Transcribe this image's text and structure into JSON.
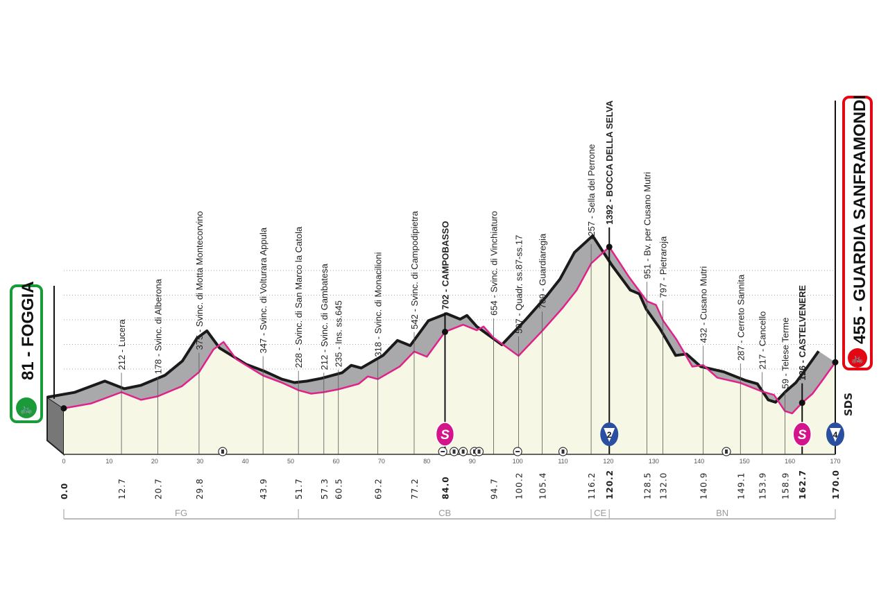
{
  "chart_data": {
    "type": "area",
    "title": "",
    "xlabel": "",
    "ylabel": "",
    "xlim": [
      0,
      170
    ],
    "ylim": [
      0,
      1400
    ],
    "x_ticks": [
      0,
      10,
      20,
      30,
      40,
      50,
      60,
      70,
      80,
      90,
      100,
      110,
      120,
      130,
      140,
      150,
      160,
      170
    ],
    "y_ticks": [
      0,
      200,
      400,
      600,
      800,
      1000,
      1200
    ],
    "grid": true,
    "profile": [
      [
        0,
        81
      ],
      [
        6,
        120
      ],
      [
        12.7,
        212
      ],
      [
        17,
        150
      ],
      [
        20.7,
        178
      ],
      [
        26,
        260
      ],
      [
        29.8,
        375
      ],
      [
        33,
        560
      ],
      [
        35.2,
        620
      ],
      [
        38,
        480
      ],
      [
        43.9,
        347
      ],
      [
        48,
        290
      ],
      [
        51.7,
        228
      ],
      [
        54.5,
        200
      ],
      [
        57.3,
        212
      ],
      [
        60.5,
        235
      ],
      [
        65,
        280
      ],
      [
        67,
        340
      ],
      [
        69.2,
        318
      ],
      [
        74,
        420
      ],
      [
        77.2,
        542
      ],
      [
        80,
        500
      ],
      [
        84,
        702
      ],
      [
        88,
        760
      ],
      [
        91,
        715
      ],
      [
        92.5,
        745
      ],
      [
        94.7,
        654
      ],
      [
        100.2,
        507
      ],
      [
        105.4,
        709
      ],
      [
        110,
        900
      ],
      [
        113,
        1040
      ],
      [
        116.2,
        1257
      ],
      [
        120.2,
        1392
      ],
      [
        124.5,
        1150
      ],
      [
        128.5,
        951
      ],
      [
        130.5,
        920
      ],
      [
        132,
        797
      ],
      [
        135,
        640
      ],
      [
        138.5,
        420
      ],
      [
        140.9,
        432
      ],
      [
        144,
        330
      ],
      [
        149.1,
        287
      ],
      [
        153.9,
        217
      ],
      [
        156.5,
        190
      ],
      [
        158.9,
        59
      ],
      [
        160.5,
        40
      ],
      [
        162.7,
        126
      ],
      [
        165,
        200
      ],
      [
        167,
        300
      ],
      [
        170,
        455
      ]
    ],
    "start": {
      "km": "0.0",
      "elevation": "81",
      "name": "FOGGIA",
      "label": "81 - FOGGIA",
      "color": "#1a9b3a"
    },
    "finish": {
      "km": "170.0",
      "elevation": "455",
      "name": "GUARDIA SANFRAMONDI",
      "label": "455 - GUARDIA SANFRAMONDI",
      "color": "#e30613"
    },
    "waypoints": [
      {
        "km": 12.7,
        "km_label": "12.7",
        "label": "212 - Lucera"
      },
      {
        "km": 20.7,
        "km_label": "20.7",
        "label": "178 - Svinc. di Alberona"
      },
      {
        "km": 29.8,
        "km_label": "29.8",
        "label": "375 - Svinc. di Motta Montecorvino"
      },
      {
        "km": 43.9,
        "km_label": "43.9",
        "label": "347 - Svinc. di Volturara Appula"
      },
      {
        "km": 51.7,
        "km_label": "51.7",
        "label": "228 - Svinc. di San Marco la Catola"
      },
      {
        "km": 57.3,
        "km_label": "57.3",
        "label": "212 - Svinc. di Gambatesa"
      },
      {
        "km": 60.5,
        "km_label": "60.5",
        "label": "235 - Ins. ss.645"
      },
      {
        "km": 69.2,
        "km_label": "69.2",
        "label": "318 - Svinc. di Monacilioni"
      },
      {
        "km": 77.2,
        "km_label": "77.2",
        "label": "542 - Svinc. di Campodipietra"
      },
      {
        "km": 84.0,
        "km_label": "84.0",
        "label": "702 - CAMPOBASSO",
        "bold": true
      },
      {
        "km": 94.7,
        "km_label": "94.7",
        "label": "654 - Svinc. di Vinchiaturo"
      },
      {
        "km": 100.2,
        "km_label": "100.2",
        "label": "507 - Quadr. ss.87-ss.17"
      },
      {
        "km": 105.4,
        "km_label": "105.4",
        "label": "709 - Guardiaregia"
      },
      {
        "km": 116.2,
        "km_label": "116.2",
        "label": "1257 - Sella del Perrone"
      },
      {
        "km": 120.2,
        "km_label": "120.2",
        "label": "1392 - BOCCA DELLA SELVA",
        "bold": true
      },
      {
        "km": 128.5,
        "km_label": "128.5",
        "label": "951 - Bv. per Cusano Mutri"
      },
      {
        "km": 132.0,
        "km_label": "132.0",
        "label": "797 - Pietraroja"
      },
      {
        "km": 140.9,
        "km_label": "140.9",
        "label": "432 - Cusano Mutri"
      },
      {
        "km": 149.1,
        "km_label": "149.1",
        "label": "287 - Cerreto Sannita"
      },
      {
        "km": 153.9,
        "km_label": "153.9",
        "label": "217 - Cancello"
      },
      {
        "km": 158.9,
        "km_label": "158.9",
        "label": "59 - Telese Terme"
      },
      {
        "km": 162.7,
        "km_label": "162.7",
        "label": "126 - CASTELVENERE",
        "bold": true
      }
    ],
    "sprints": [
      {
        "km": 84.0,
        "symbol": "S"
      },
      {
        "km": 162.7,
        "symbol": "S"
      }
    ],
    "climbs": [
      {
        "km": 120.2,
        "category": "2"
      },
      {
        "km": 170.0,
        "category": "4"
      }
    ],
    "tunnels_km": [
      35,
      86,
      88,
      90.5,
      91.5,
      110,
      146
    ],
    "level_crossings_km": [
      83.5,
      100
    ],
    "regions": [
      {
        "code": "FG",
        "from": 0,
        "to": 51.7
      },
      {
        "code": "CB",
        "from": 51.7,
        "to": 116.2
      },
      {
        "code": "CE",
        "from": 116.2,
        "to": 120.2
      },
      {
        "code": "BN",
        "from": 120.2,
        "to": 170
      }
    ],
    "logo": "SDS",
    "colors": {
      "profile_fill": "#f6f7e4",
      "road_edge": "#e0218a",
      "band": "#a9a9ab",
      "sprint": "#d4148a",
      "climb": "#2a4ea0"
    }
  }
}
